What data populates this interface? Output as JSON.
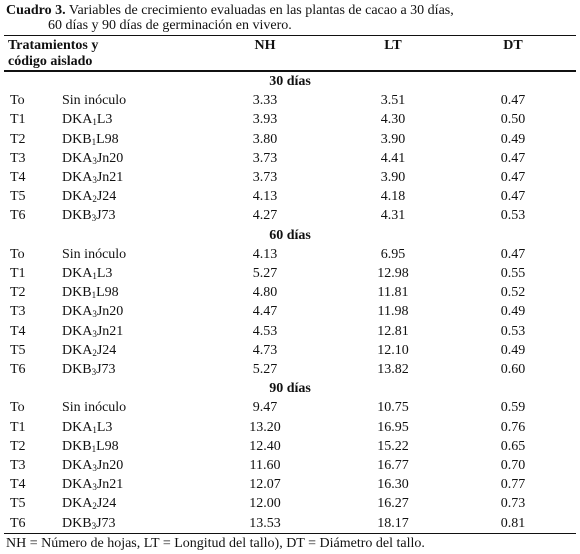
{
  "caption": {
    "label": "Cuadro 3.",
    "lines": [
      "Variables de crecimiento evaluadas en las plantas de cacao a 30 días,",
      "60 días y 90 días de germinación en vivero."
    ]
  },
  "table": {
    "headers": {
      "treatment": [
        "Tratamientos y",
        "código aislado"
      ],
      "nh": "NH",
      "lt": "LT",
      "dt": "DT"
    },
    "sections": [
      {
        "label": "30 días",
        "rows": [
          {
            "treatment": "To",
            "code": [
              "Sin inóculo"
            ],
            "nh": "3.33",
            "lt": "3.51",
            "dt": "0.47"
          },
          {
            "treatment": "T1",
            "code": [
              "DKA",
              "1",
              "L3"
            ],
            "nh": "3.93",
            "lt": "4.30",
            "dt": "0.50"
          },
          {
            "treatment": "T2",
            "code": [
              "DKB",
              "1",
              "L98"
            ],
            "nh": "3.80",
            "lt": "3.90",
            "dt": "0.49"
          },
          {
            "treatment": "T3",
            "code": [
              "DKA",
              "3",
              "Jn20"
            ],
            "nh": "3.73",
            "lt": "4.41",
            "dt": "0.47"
          },
          {
            "treatment": "T4",
            "code": [
              "DKA",
              "3",
              "Jn21"
            ],
            "nh": "3.73",
            "lt": "3.90",
            "dt": "0.47"
          },
          {
            "treatment": "T5",
            "code": [
              "DKA",
              "2",
              "J24"
            ],
            "nh": "4.13",
            "lt": "4.18",
            "dt": "0.47"
          },
          {
            "treatment": "T6",
            "code": [
              "DKB",
              "3",
              "J73"
            ],
            "nh": "4.27",
            "lt": "4.31",
            "dt": "0.53"
          }
        ]
      },
      {
        "label": "60 días",
        "rows": [
          {
            "treatment": "To",
            "code": [
              "Sin inóculo"
            ],
            "nh": "4.13",
            "lt": "6.95",
            "dt": "0.47"
          },
          {
            "treatment": "T1",
            "code": [
              "DKA",
              "1",
              "L3"
            ],
            "nh": "5.27",
            "lt": "12.98",
            "dt": "0.55"
          },
          {
            "treatment": "T2",
            "code": [
              "DKB",
              "1",
              "L98"
            ],
            "nh": "4.80",
            "lt": "11.81",
            "dt": "0.52"
          },
          {
            "treatment": "T3",
            "code": [
              "DKA",
              "3",
              "Jn20"
            ],
            "nh": "4.47",
            "lt": "11.98",
            "dt": "0.49"
          },
          {
            "treatment": "T4",
            "code": [
              "DKA",
              "3",
              "Jn21"
            ],
            "nh": "4.53",
            "lt": "12.81",
            "dt": "0.53"
          },
          {
            "treatment": "T5",
            "code": [
              "DKA",
              "2",
              "J24"
            ],
            "nh": "4.73",
            "lt": "12.10",
            "dt": "0.49"
          },
          {
            "treatment": "T6",
            "code": [
              "DKB",
              "3",
              "J73"
            ],
            "nh": "5.27",
            "lt": "13.82",
            "dt": "0.60"
          }
        ]
      },
      {
        "label": "90 días",
        "rows": [
          {
            "treatment": "To",
            "code": [
              "Sin inóculo"
            ],
            "nh": "9.47",
            "lt": "10.75",
            "dt": "0.59"
          },
          {
            "treatment": "T1",
            "code": [
              "DKA",
              "1",
              "L3"
            ],
            "nh": "13.20",
            "lt": "16.95",
            "dt": "0.76"
          },
          {
            "treatment": "T2",
            "code": [
              "DKB",
              "1",
              "L98"
            ],
            "nh": "12.40",
            "lt": "15.22",
            "dt": "0.65"
          },
          {
            "treatment": "T3",
            "code": [
              "DKA",
              "3",
              "Jn20"
            ],
            "nh": "11.60",
            "lt": "16.77",
            "dt": "0.70"
          },
          {
            "treatment": "T4",
            "code": [
              "DKA",
              "3",
              "Jn21"
            ],
            "nh": "12.07",
            "lt": "16.30",
            "dt": "0.77"
          },
          {
            "treatment": "T5",
            "code": [
              "DKA",
              "2",
              "J24"
            ],
            "nh": "12.00",
            "lt": "16.27",
            "dt": "0.73"
          },
          {
            "treatment": "T6",
            "code": [
              "DKB",
              "3",
              "J73"
            ],
            "nh": "13.53",
            "lt": "18.17",
            "dt": "0.81"
          }
        ]
      }
    ]
  },
  "footnote": "NH = Número de hojas, LT = Longitud del tallo), DT = Diámetro del tallo."
}
